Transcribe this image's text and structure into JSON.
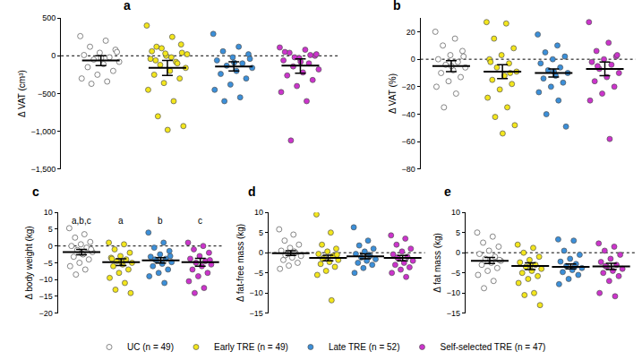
{
  "chart_data": [
    {
      "type": "scatter",
      "label": "a",
      "y_label": "Δ VAT (cm³)",
      "marker": "circle",
      "grid": false,
      "tick_labels": "y",
      "legend": "bottom",
      "reference_line": {
        "value": 0,
        "line_style": "dotted"
      },
      "ylim": [
        -1500,
        500
      ],
      "yticks": [
        {
          "value": -1500,
          "label": "−1,500"
        },
        {
          "value": -1000,
          "label": "−1,000"
        },
        {
          "value": -500,
          "label": "−500"
        },
        0,
        500
      ],
      "series": [
        {
          "name": "UC (n = 49)",
          "color": "#ffffff",
          "mean": -60,
          "ci": [
            -130,
            0
          ],
          "values": [
            260,
            200,
            120,
            80,
            40,
            10,
            -20,
            -50,
            -80,
            -110,
            -150,
            -200,
            -250,
            -300,
            -340,
            -370,
            50,
            -30
          ]
        },
        {
          "name": "Early TRE (n = 49)",
          "color": "#f3e61c",
          "mean": -160,
          "ci": [
            -260,
            -60
          ],
          "values": [
            400,
            250,
            120,
            40,
            0,
            -40,
            -80,
            -120,
            -160,
            -200,
            -250,
            -300,
            -360,
            -450,
            -600,
            -800,
            -930,
            -980,
            60,
            -100,
            100,
            20,
            -20,
            -60,
            150,
            30
          ]
        },
        {
          "name": "Late TRE (n = 52)",
          "color": "#3b8fd9",
          "mean": -140,
          "ci": [
            -200,
            -80
          ],
          "values": [
            290,
            120,
            60,
            20,
            -20,
            -60,
            -100,
            -130,
            -160,
            -200,
            -240,
            -300,
            -380,
            -450,
            -550,
            -600,
            -40,
            -90
          ]
        },
        {
          "name": "Self-selected TRE (n = 47)",
          "color": "#cc33cc",
          "mean": -130,
          "ci": [
            -230,
            -40
          ],
          "values": [
            110,
            80,
            40,
            0,
            -30,
            -60,
            -100,
            -140,
            -180,
            -220,
            -260,
            -320,
            -400,
            -480,
            -600,
            -1120,
            20,
            -80,
            50,
            10,
            -20
          ]
        }
      ]
    },
    {
      "type": "scatter",
      "label": "b",
      "y_label": "Δ VAT (%)",
      "marker": "circle",
      "grid": false,
      "tick_labels": "y",
      "reference_line": {
        "value": 0,
        "line_style": "dotted"
      },
      "ylim": [
        -80,
        30
      ],
      "yticks": [
        {
          "value": -80,
          "label": "−80"
        },
        {
          "value": -60,
          "label": "−60"
        },
        {
          "value": -40,
          "label": "−40"
        },
        {
          "value": -20,
          "label": "−20"
        },
        0,
        20
      ],
      "series": [
        {
          "name": "UC (n = 49)",
          "color": "#ffffff",
          "mean": -5,
          "ci": [
            -9,
            -1
          ],
          "values": [
            20,
            15,
            10,
            6,
            3,
            0,
            -2,
            -4,
            -6,
            -8,
            -10,
            -13,
            -16,
            -20,
            -25,
            -35,
            2,
            -5
          ]
        },
        {
          "name": "Early TRE (n = 49)",
          "color": "#f3e61c",
          "mean": -9,
          "ci": [
            -14,
            -4
          ],
          "values": [
            27,
            26,
            15,
            8,
            3,
            0,
            -3,
            -6,
            -9,
            -12,
            -15,
            -18,
            -22,
            -28,
            -35,
            -42,
            -48,
            -54,
            -2,
            -10
          ]
        },
        {
          "name": "Late TRE (n = 52)",
          "color": "#3b8fd9",
          "mean": -10,
          "ci": [
            -13,
            -7
          ],
          "values": [
            18,
            10,
            5,
            2,
            0,
            -3,
            -6,
            -8,
            -10,
            -12,
            -14,
            -17,
            -20,
            -24,
            -30,
            -40,
            -49,
            -9
          ]
        },
        {
          "name": "Self-selected TRE (n = 47)",
          "color": "#cc33cc",
          "mean": -7,
          "ci": [
            -12,
            -2
          ],
          "values": [
            27,
            12,
            6,
            2,
            0,
            -2,
            -4,
            -7,
            -10,
            -13,
            -16,
            -20,
            -25,
            -30,
            -58,
            -5,
            3
          ]
        }
      ]
    },
    {
      "type": "scatter",
      "label": "c",
      "y_label": "Δ body weight (kg)",
      "marker": "circle",
      "grid": false,
      "tick_labels": "y",
      "reference_line": {
        "value": 0,
        "line_style": "dotted"
      },
      "ylim": [
        -20,
        10
      ],
      "yticks": [
        {
          "value": -20,
          "label": "−20"
        },
        {
          "value": -15,
          "label": "−15"
        },
        {
          "value": -10,
          "label": "−10"
        },
        {
          "value": -5,
          "label": "−5"
        },
        0,
        5,
        10
      ],
      "series": [
        {
          "name": "UC (n = 49)",
          "color": "#ffffff",
          "annotation": "a,b,c",
          "mean": -1.8,
          "ci": [
            -2.6,
            -1.0
          ],
          "values": [
            5.3,
            3.5,
            2.5,
            1.2,
            0.5,
            0,
            -0.5,
            -1.2,
            -1.8,
            -2.5,
            -3.2,
            -4,
            -5,
            -6,
            -7,
            -8.5,
            -1,
            -2.2
          ]
        },
        {
          "name": "Early TRE (n = 49)",
          "color": "#f3e61c",
          "annotation": "a",
          "mean": -4.8,
          "ci": [
            -5.8,
            -3.8
          ],
          "values": [
            1,
            0.5,
            -1,
            -2,
            -3,
            -3.5,
            -4,
            -4.5,
            -5,
            -5.5,
            -6,
            -7,
            -8,
            -9.5,
            -11,
            -13,
            -14,
            -4.8,
            -3.8
          ]
        },
        {
          "name": "Late TRE (n = 52)",
          "color": "#3b8fd9",
          "annotation": "b",
          "mean": -4.3,
          "ci": [
            -5.1,
            -3.5
          ],
          "values": [
            4,
            1,
            -0.5,
            -1.5,
            -2.5,
            -3.2,
            -3.8,
            -4.3,
            -4.8,
            -5.3,
            -6,
            -7,
            -8,
            -9,
            -11,
            -4,
            -3
          ]
        },
        {
          "name": "Self-selected TRE (n = 47)",
          "color": "#cc33cc",
          "annotation": "c",
          "mean": -4.8,
          "ci": [
            -6.0,
            -3.7
          ],
          "values": [
            1,
            0,
            -1,
            -2,
            -3,
            -3.8,
            -4.5,
            -5,
            -5.5,
            -6,
            -7,
            -8,
            -9,
            -10.5,
            -12.5,
            -14,
            -4.2
          ]
        }
      ]
    },
    {
      "type": "scatter",
      "label": "d",
      "y_label": "Δ fat-free mass (kg)",
      "marker": "circle",
      "grid": false,
      "tick_labels": "y",
      "reference_line": {
        "value": 0,
        "line_style": "dotted"
      },
      "ylim": [
        -15,
        10
      ],
      "yticks": [
        {
          "value": -15,
          "label": "−15"
        },
        {
          "value": -10,
          "label": "−10"
        },
        {
          "value": -5,
          "label": "−5"
        },
        0,
        5,
        10
      ],
      "series": [
        {
          "name": "UC (n = 49)",
          "color": "#ffffff",
          "mean": -0.1,
          "ci": [
            -0.7,
            0.5
          ],
          "values": [
            5.8,
            4.5,
            3,
            2,
            1.2,
            0.5,
            0,
            -0.4,
            -0.8,
            -1.2,
            -1.8,
            -2.5,
            -3.2,
            -4,
            0.3,
            -0.6
          ]
        },
        {
          "name": "Early TRE (n = 49)",
          "color": "#f3e61c",
          "mean": -1.3,
          "ci": [
            -2.0,
            -0.6
          ],
          "values": [
            9.5,
            5,
            2,
            1,
            0.3,
            -0.3,
            -0.8,
            -1.3,
            -1.8,
            -2.3,
            -2.8,
            -3.5,
            -4.5,
            -5.5,
            -11.8,
            -1.5,
            -0.5
          ]
        },
        {
          "name": "Late TRE (n = 52)",
          "color": "#3b8fd9",
          "mean": -0.9,
          "ci": [
            -1.5,
            -0.3
          ],
          "values": [
            6.3,
            3,
            1.8,
            1,
            0.3,
            -0.3,
            -0.8,
            -1.2,
            -1.6,
            -2,
            -2.5,
            -3,
            -3.8,
            -5,
            -0.5
          ]
        },
        {
          "name": "Self-selected TRE (n = 47)",
          "color": "#cc33cc",
          "mean": -1.3,
          "ci": [
            -2.0,
            -0.7
          ],
          "values": [
            4.3,
            3.5,
            2,
            1,
            0.3,
            -0.4,
            -1,
            -1.5,
            -2,
            -2.5,
            -3,
            -3.6,
            -4.2,
            -5,
            -6,
            -1.2
          ]
        }
      ]
    },
    {
      "type": "scatter",
      "label": "e",
      "y_label": "Δ fat mass (kg)",
      "marker": "circle",
      "grid": false,
      "tick_labels": "y",
      "reference_line": {
        "value": 0,
        "line_style": "dotted"
      },
      "ylim": [
        -15,
        10
      ],
      "yticks": [
        {
          "value": -15,
          "label": "−15"
        },
        {
          "value": -10,
          "label": "−10"
        },
        {
          "value": -5,
          "label": "−5"
        },
        0,
        5,
        10
      ],
      "series": [
        {
          "name": "UC (n = 49)",
          "color": "#ffffff",
          "mean": -2.0,
          "ci": [
            -2.7,
            -1.2
          ],
          "values": [
            5,
            4,
            2.5,
            1.5,
            0.5,
            -0.3,
            -1,
            -1.5,
            -2,
            -2.5,
            -3,
            -3.8,
            -4.5,
            -5.5,
            -7,
            -8.8,
            -1.8
          ]
        },
        {
          "name": "Early TRE (n = 49)",
          "color": "#f3e61c",
          "mean": -3.3,
          "ci": [
            -4.2,
            -2.5
          ],
          "values": [
            2,
            1.2,
            0,
            -1,
            -1.8,
            -2.4,
            -3,
            -3.5,
            -4,
            -4.5,
            -5,
            -5.8,
            -6.5,
            -7.5,
            -10,
            -10.5,
            -13,
            -3.2
          ]
        },
        {
          "name": "Late TRE (n = 52)",
          "color": "#3b8fd9",
          "mean": -3.5,
          "ci": [
            -4.0,
            -2.8
          ],
          "values": [
            3.3,
            3,
            0.5,
            -0.5,
            -1.5,
            -2.2,
            -2.8,
            -3.3,
            -3.8,
            -4.3,
            -4.8,
            -5.5,
            -6.5,
            -7.8,
            -3.5
          ]
        },
        {
          "name": "Self-selected TRE (n = 47)",
          "color": "#cc33cc",
          "mean": -3.4,
          "ci": [
            -4.2,
            -2.6
          ],
          "values": [
            2.3,
            1.5,
            0.5,
            -0.5,
            -1.5,
            -2.3,
            -3,
            -3.5,
            -4,
            -4.5,
            -5,
            -5.8,
            -7,
            -10,
            -10.8,
            -3.3
          ]
        }
      ]
    }
  ]
}
